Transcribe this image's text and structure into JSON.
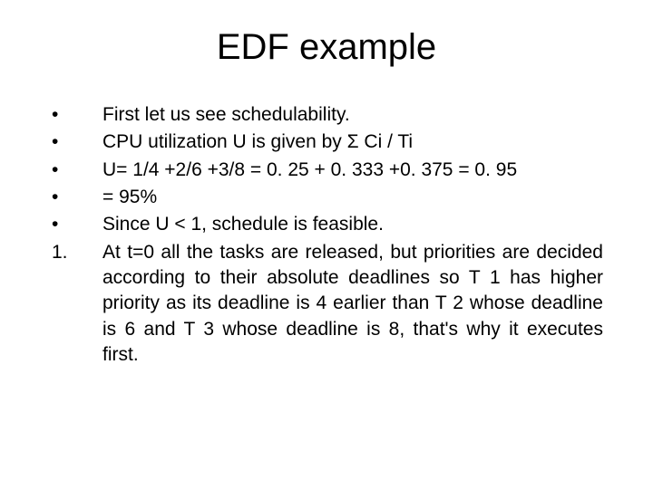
{
  "slide": {
    "title": "EDF example",
    "title_fontsize": 40,
    "body_fontsize": 21,
    "text_color": "#000000",
    "background_color": "#ffffff",
    "items": [
      {
        "marker": "•",
        "text": "First let us see schedulability.",
        "justified": false
      },
      {
        "marker": "•",
        "text": "CPU utilization U is given by Σ Ci / Ti",
        "justified": false
      },
      {
        "marker": "•",
        "text": "U= 1/4 +2/6 +3/8 = 0. 25 + 0. 333 +0. 375 = 0. 95",
        "justified": false
      },
      {
        "marker": "•",
        "text": "= 95%",
        "justified": false
      },
      {
        "marker": "•",
        "text": "Since U < 1, schedule is feasible.",
        "justified": false
      },
      {
        "marker": "1.",
        "text": "At t=0 all the tasks are released, but priorities are decided according to their absolute deadlines so T 1 has higher priority as its deadline is 4 earlier than T 2 whose deadline is 6 and T 3 whose deadline is 8, that's why it executes first.",
        "justified": true
      }
    ]
  }
}
